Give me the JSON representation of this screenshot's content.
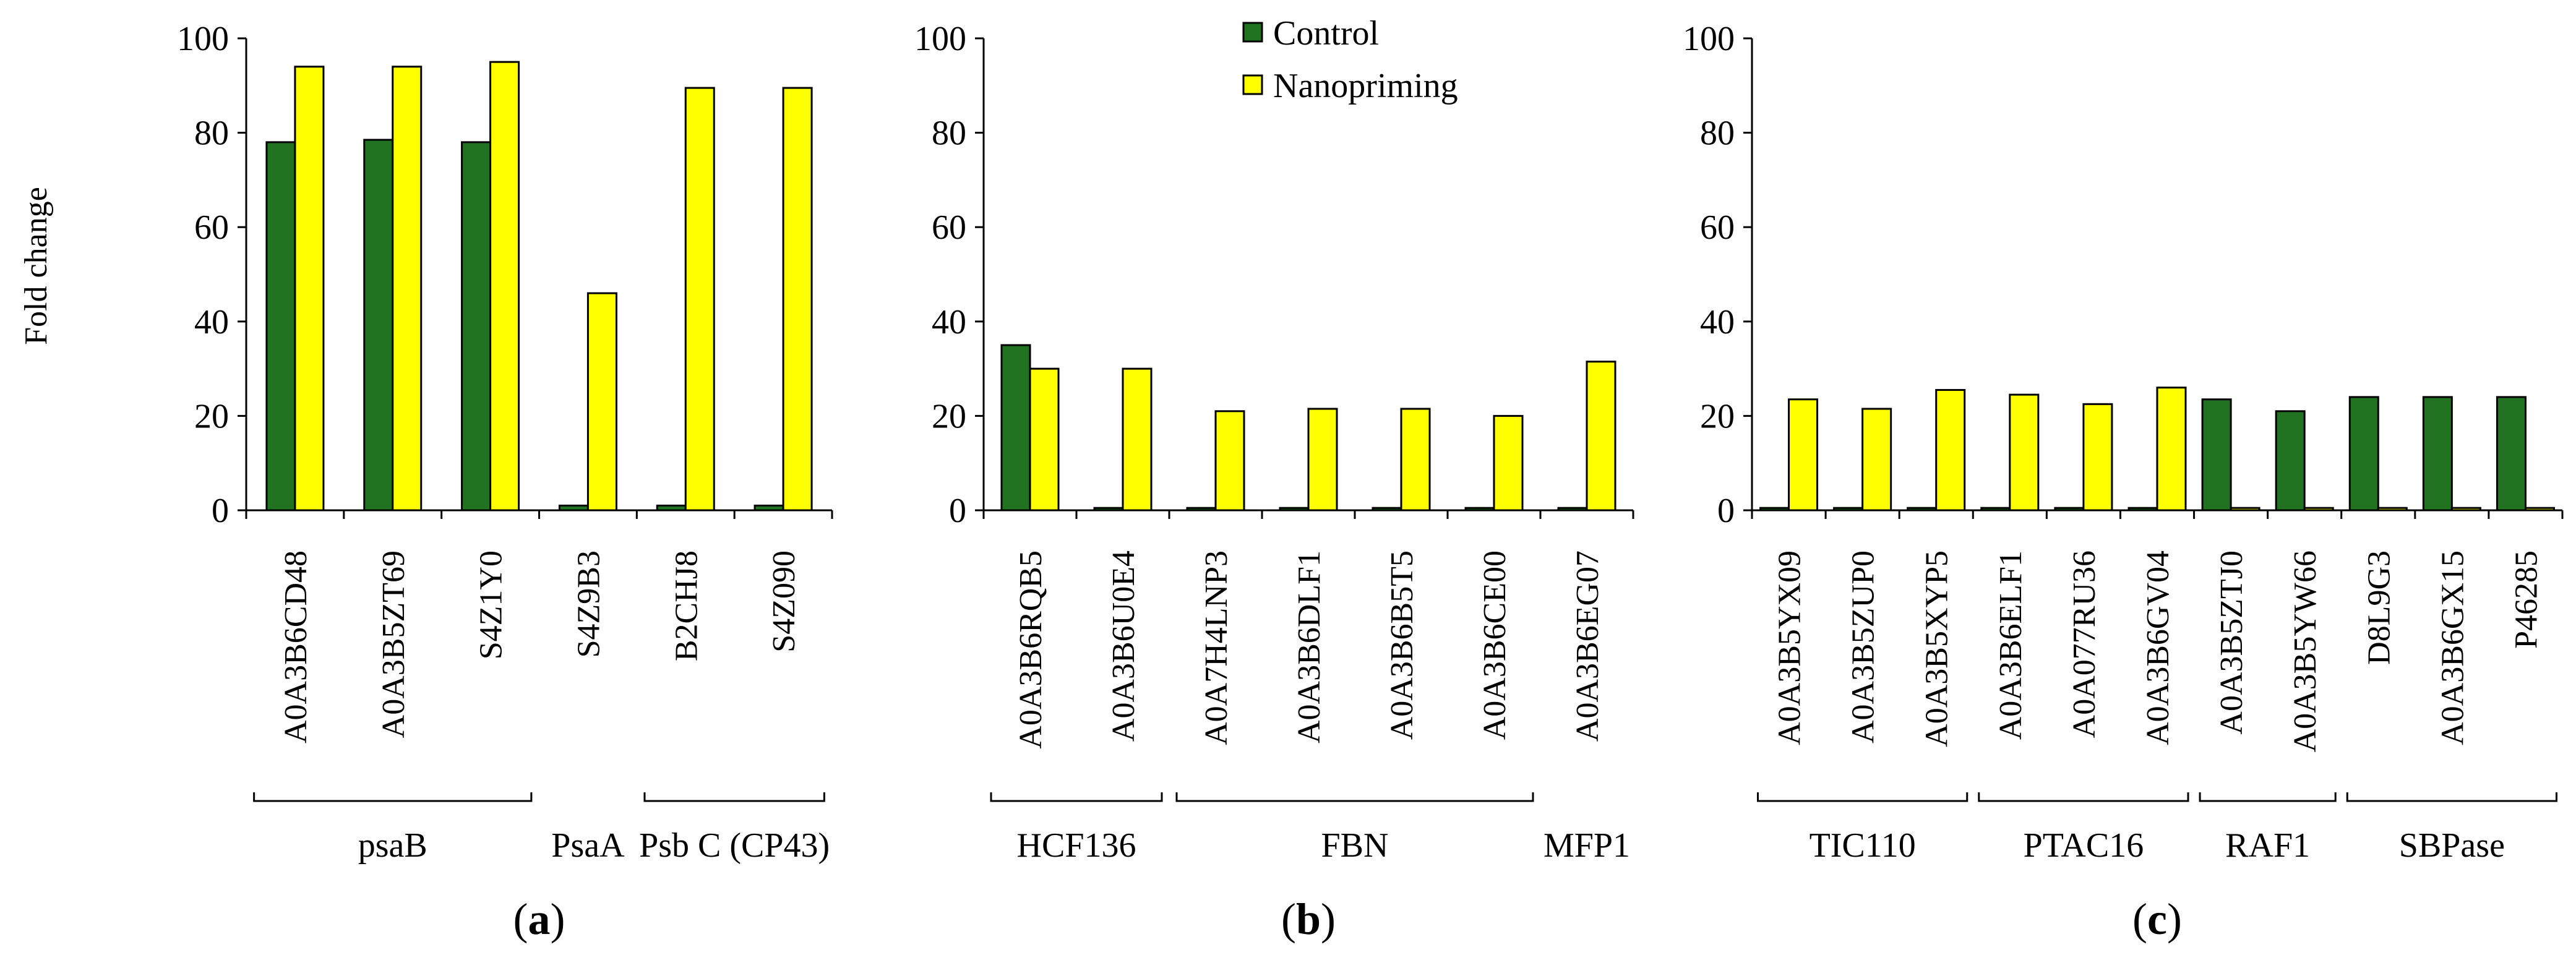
{
  "colors": {
    "control": "#217321",
    "nanopriming": "#ffff00",
    "axis": "#000000"
  },
  "legend": [
    {
      "key": "control",
      "label": "Control"
    },
    {
      "key": "nanopriming",
      "label": "Nanopriming"
    }
  ],
  "ylabel": "Fold change",
  "chart_data": [
    {
      "type": "bar",
      "panel_label": "a",
      "ylim": [
        0,
        100
      ],
      "yticks": [
        "0",
        "20",
        "40",
        "60",
        "80",
        "100"
      ],
      "categories": [
        "A0A3B6CD48",
        "A0A3B5ZT69",
        "S4Z1Y0",
        "S4Z9B3",
        "B2CHJ8",
        "S4Z090"
      ],
      "series": [
        {
          "name": "Control",
          "values": [
            78,
            78.5,
            78,
            1,
            1,
            1
          ]
        },
        {
          "name": "Nanopriming",
          "values": [
            94,
            94,
            95,
            46,
            89.5,
            89.5
          ]
        }
      ],
      "groups": [
        {
          "label": "psaB",
          "start": 0,
          "end": 2,
          "bracket": true
        },
        {
          "label": "PsaA",
          "start": 3,
          "end": 3,
          "bracket": false
        },
        {
          "label": "Psb C (CP43)",
          "start": 4,
          "end": 5,
          "bracket": true
        }
      ]
    },
    {
      "type": "bar",
      "panel_label": "b",
      "ylim": [
        0,
        100
      ],
      "yticks": [
        "0",
        "20",
        "40",
        "60",
        "80",
        "100"
      ],
      "categories": [
        "A0A3B6RQB5",
        "A0A3B6U0E4",
        "A0A7H4LNP3",
        "A0A3B6DLF1",
        "A0A3B6B5T5",
        "A0A3B6CE00",
        "A0A3B6EG07"
      ],
      "series": [
        {
          "name": "Control",
          "values": [
            35,
            0.5,
            0.5,
            0.5,
            0.5,
            0.5,
            0.5
          ]
        },
        {
          "name": "Nanopriming",
          "values": [
            30,
            30,
            21,
            21.5,
            21.5,
            20,
            31.5
          ]
        }
      ],
      "groups": [
        {
          "label": "HCF136",
          "start": 0,
          "end": 1,
          "bracket": true
        },
        {
          "label": "FBN",
          "start": 2,
          "end": 5,
          "bracket": true
        },
        {
          "label": "MFP1",
          "start": 6,
          "end": 6,
          "bracket": false
        }
      ]
    },
    {
      "type": "bar",
      "panel_label": "c",
      "ylim": [
        0,
        100
      ],
      "yticks": [
        "0",
        "20",
        "40",
        "60",
        "80",
        "100"
      ],
      "categories": [
        "A0A3B5YX09",
        "A0A3B5ZUP0",
        "A0A3B5XYP5",
        "A0A3B6ELF1",
        "A0A077RU36",
        "A0A3B6GV04",
        "A0A3B5ZTJ0",
        "A0A3B5YW66",
        "D8L9G3",
        "A0A3B6GX15",
        "P46285"
      ],
      "series": [
        {
          "name": "Control",
          "values": [
            0.5,
            0.5,
            0.5,
            0.5,
            0.5,
            0.5,
            23.5,
            21,
            24,
            24,
            24
          ]
        },
        {
          "name": "Nanopriming",
          "values": [
            23.5,
            21.5,
            25.5,
            24.5,
            22.5,
            26,
            0.5,
            0.5,
            0.5,
            0.5,
            0.5
          ]
        }
      ],
      "groups": [
        {
          "label": "TIC110",
          "start": 0,
          "end": 2,
          "bracket": true
        },
        {
          "label": "PTAC16",
          "start": 3,
          "end": 5,
          "bracket": true
        },
        {
          "label": "RAF1",
          "start": 6,
          "end": 7,
          "bracket": true
        },
        {
          "label": "SBPase",
          "start": 8,
          "end": 10,
          "bracket": true
        }
      ]
    }
  ]
}
